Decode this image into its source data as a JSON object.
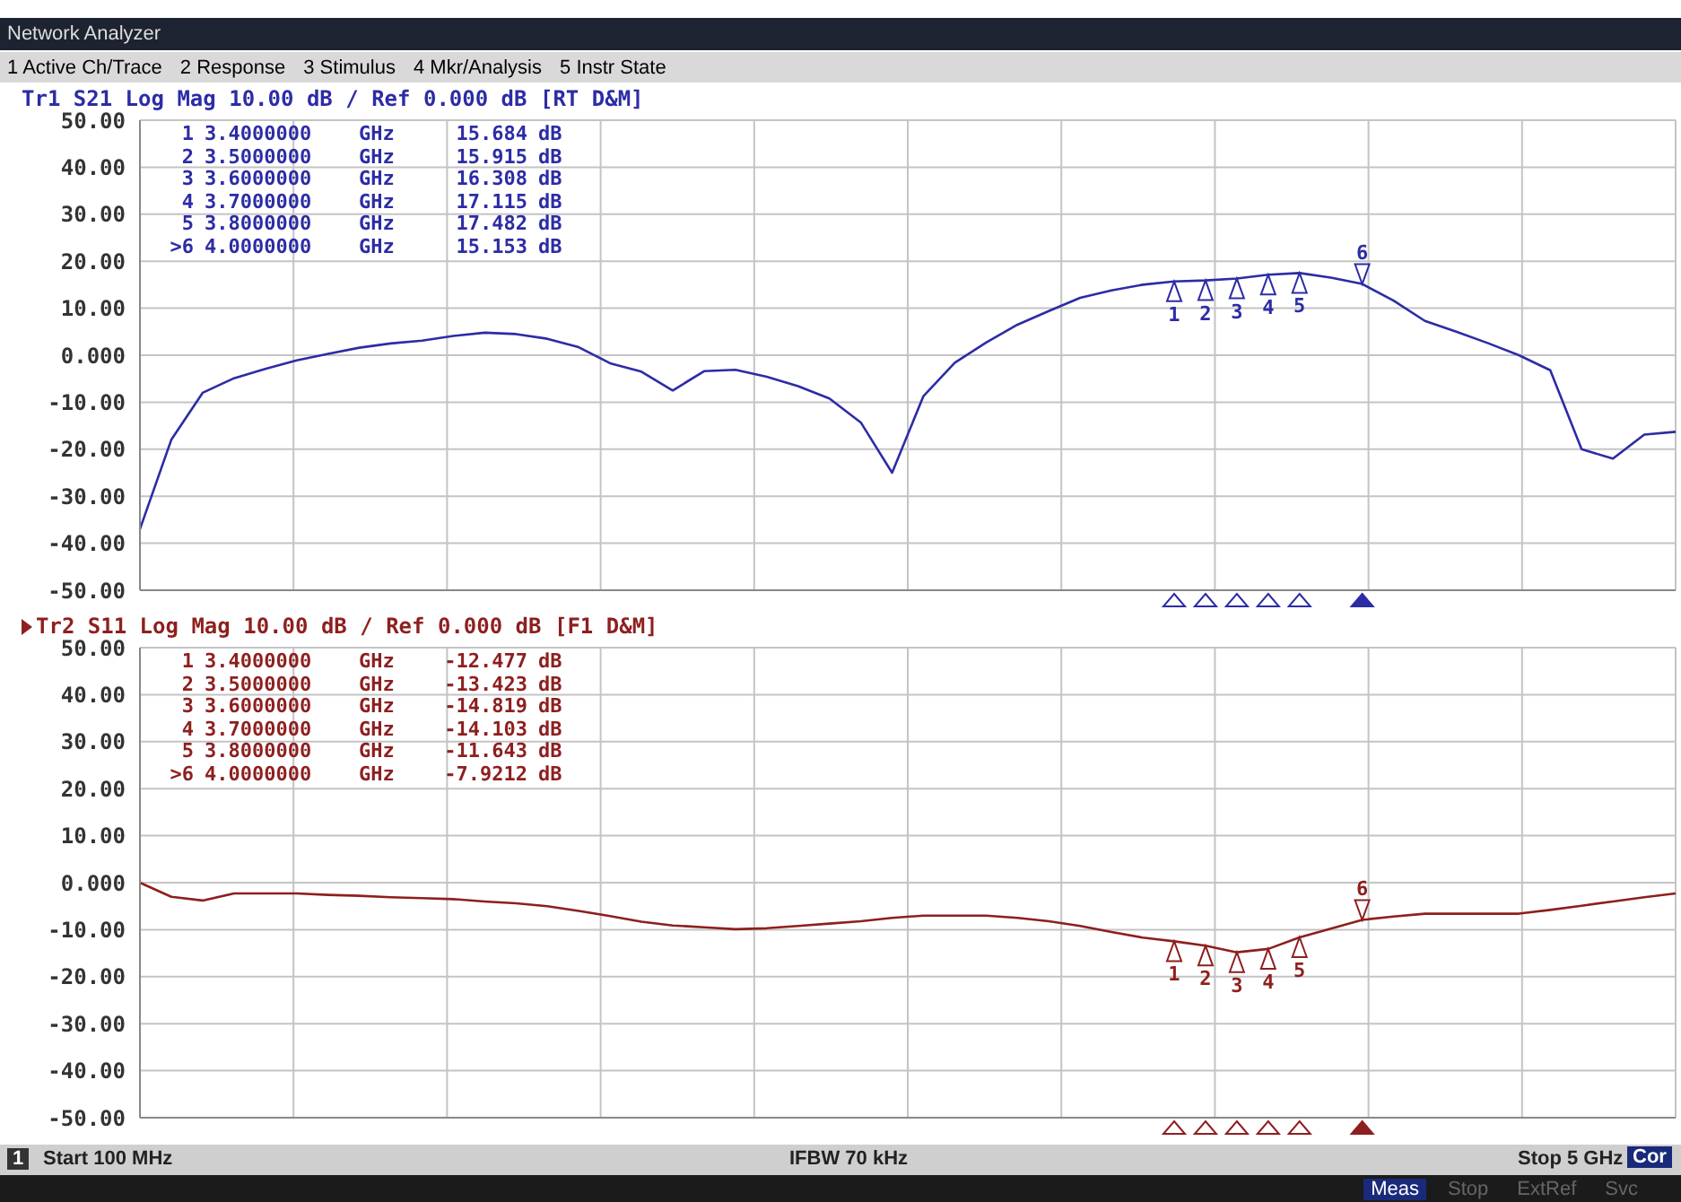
{
  "chart_data": [
    {
      "type": "line",
      "title": "Tr1 S21 Log Mag 10.00 dB / Ref 0.000 dB [RT D&M]",
      "color": "#2c2ca6",
      "categories": [
        null,
        null,
        null,
        null,
        null,
        null,
        null,
        null,
        null,
        null,
        null,
        null,
        null,
        null,
        null,
        null,
        null,
        null,
        null,
        null,
        null,
        null,
        null,
        null,
        null,
        null,
        null,
        null,
        null,
        null,
        null,
        null,
        null,
        null,
        null,
        null,
        null,
        null,
        null,
        null,
        null,
        null,
        null,
        null,
        null,
        null,
        null,
        null,
        null,
        null
      ],
      "values": [
        -37,
        -18,
        -8,
        -4.9,
        -2.9,
        -1.1,
        0.3,
        1.6,
        2.5,
        3.1,
        4.1,
        4.8,
        4.5,
        3.5,
        1.7,
        -1.7,
        -3.5,
        -7.5,
        -3.4,
        -3.1,
        -4.6,
        -6.6,
        -9.2,
        -14.3,
        -25,
        -8.7,
        -1.6,
        2.7,
        6.5,
        9.4,
        12.2,
        13.8,
        15.0,
        15.684,
        15.915,
        16.308,
        17.115,
        17.482,
        16.5,
        15.153,
        11.6,
        7.3,
        5.0,
        2.6,
        0,
        -3.2,
        -20,
        -22,
        -16.9,
        -16.3
      ],
      "ylim": [
        -50,
        50
      ],
      "yticks": [
        {
          "value": 50,
          "label": "50.00"
        },
        {
          "value": 40,
          "label": "40.00"
        },
        {
          "value": 30,
          "label": "30.00"
        },
        {
          "value": 20,
          "label": "20.00"
        },
        {
          "value": 10,
          "label": "10.00"
        },
        {
          "value": 0,
          "label": "0.000"
        },
        {
          "value": -10,
          "label": "-10.00"
        },
        {
          "value": -20,
          "label": "-20.00"
        },
        {
          "value": -30,
          "label": "-30.00"
        },
        {
          "value": -40,
          "label": "-40.00"
        },
        {
          "value": -50,
          "label": "-50.00"
        }
      ],
      "grid": true,
      "tick_labels": "y",
      "marker": "none",
      "line_style": "solid",
      "annotations": [
        "Network Analyzer",
        "1 Active Ch/Trace",
        "2 Response",
        "3 Stimulus",
        "4 Mkr/Analysis",
        "5 Instr State",
        "1 3.4000000 GHz 15.684 dB",
        "2 3.5000000 GHz 15.915 dB",
        "3 3.6000000 GHz 16.308 dB",
        "4 3.7000000 GHz 17.115 dB",
        "5 3.8000000 GHz 17.482 dB",
        ">6 4.0000000 GHz 15.153 dB",
        {
          "text": "1",
          "y": 15.684
        },
        {
          "text": "2",
          "y": 15.915
        },
        {
          "text": "3",
          "y": 16.308
        },
        {
          "text": "4",
          "y": 17.115
        },
        {
          "text": "5",
          "y": 17.482
        },
        {
          "text": "6",
          "y": 15.153
        }
      ]
    },
    {
      "type": "line",
      "title": "Tr2 S11 Log Mag 10.00 dB / Ref 0.000 dB [F1 D&M]",
      "color": "#8e1f1f",
      "categories": [
        null,
        null,
        null,
        null,
        null,
        null,
        null,
        null,
        null,
        null,
        null,
        null,
        null,
        null,
        null,
        null,
        null,
        null,
        null,
        null,
        null,
        null,
        null,
        null,
        null,
        null,
        null,
        null,
        null,
        null,
        null,
        null,
        null,
        null,
        null,
        null,
        null,
        null,
        null,
        null,
        null,
        null,
        null,
        null,
        null,
        null,
        null,
        null,
        null,
        null
      ],
      "values": [
        0,
        -3,
        -3.8,
        -2.3,
        -2.3,
        -2.3,
        -2.6,
        -2.8,
        -3.1,
        -3.3,
        -3.5,
        -4.0,
        -4.4,
        -5.0,
        -6.0,
        -7.1,
        -8.3,
        -9.1,
        -9.5,
        -9.9,
        -9.7,
        -9.2,
        -8.7,
        -8.2,
        -7.5,
        -7,
        -7,
        -7,
        -7.5,
        -8.2,
        -9.2,
        -10.5,
        -11.7,
        -12.477,
        -13.423,
        -14.819,
        -14.103,
        -11.643,
        -9.8,
        -7.9212,
        -7.2,
        -6.6,
        -6.6,
        -6.6,
        -6.6,
        -5.8,
        -4.9,
        -4.0,
        -3.1,
        -2.3
      ],
      "ylim": [
        -50,
        50
      ],
      "yticks": [
        {
          "value": 50,
          "label": "50.00"
        },
        {
          "value": 40,
          "label": "40.00"
        },
        {
          "value": 30,
          "label": "30.00"
        },
        {
          "value": 20,
          "label": "20.00"
        },
        {
          "value": 10,
          "label": "10.00"
        },
        {
          "value": 0,
          "label": "0.000"
        },
        {
          "value": -10,
          "label": "-10.00"
        },
        {
          "value": -20,
          "label": "-20.00"
        },
        {
          "value": -30,
          "label": "-30.00"
        },
        {
          "value": -40,
          "label": "-40.00"
        },
        {
          "value": -50,
          "label": "-50.00"
        }
      ],
      "grid": true,
      "tick_labels": "y",
      "marker": "none",
      "line_style": "solid",
      "annotations": [
        "1 3.4000000 GHz -12.477 dB",
        "2 3.5000000 GHz -13.423 dB",
        "3 3.6000000 GHz -14.819 dB",
        "4 3.7000000 GHz -14.103 dB",
        "5 3.8000000 GHz -11.643 dB",
        ">6 4.0000000 GHz -7.9212 dB",
        "1",
        "Start 100 MHz",
        "IFBW 70 kHz",
        "Stop 5 GHz",
        "Cor",
        "Meas",
        "Stop",
        "ExtRef",
        "Svc",
        {
          "text": "1",
          "y": -12.477
        },
        {
          "text": "2",
          "y": -13.423
        },
        {
          "text": "3",
          "y": -14.819
        },
        {
          "text": "4",
          "y": -14.103
        },
        {
          "text": "5",
          "y": -11.643
        },
        {
          "text": "6",
          "y": -7.9212
        }
      ]
    }
  ]
}
